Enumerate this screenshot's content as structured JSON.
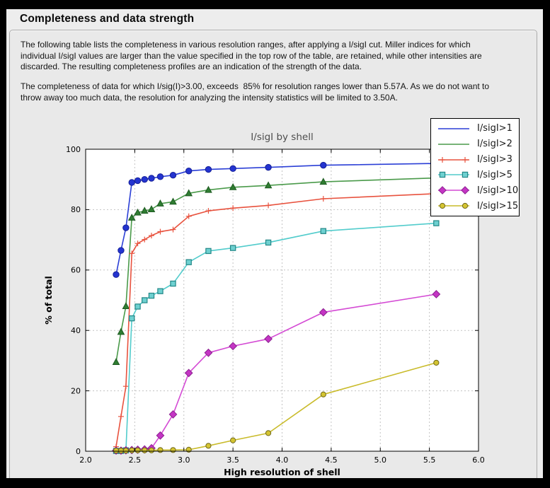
{
  "header": {
    "title": "Completeness and data strength"
  },
  "paragraphs": {
    "p1": "The following table lists the completeness in various resolution ranges, after applying a I/sigI cut. Miller indices for which\nindividual I/sigI values are larger than the value specified in the top row of the table, are retained, while other intensities are\ndiscarded. The resulting completeness profiles are an indication of the strength of the data.",
    "p2": "The completeness of data for which I/sig(I)>3.00, exceeds  85% for resolution ranges lower than 5.57A. As we do not want to\nthrow away too much data, the resolution for analyzing the intensity statistics will be limited to 3.50A."
  },
  "chart_data": {
    "type": "line",
    "title": "I/sigI by shell",
    "xlabel": "High resolution of shell",
    "ylabel": "% of total",
    "xlim": [
      2.0,
      6.0
    ],
    "ylim": [
      0,
      100
    ],
    "xticks": [
      2.0,
      2.5,
      3.0,
      3.5,
      4.0,
      4.5,
      5.0,
      5.5,
      6.0
    ],
    "xtick_labels": [
      "2.0",
      "2.5",
      "3.0",
      "3.5",
      "4.0",
      "4.5",
      "5.0",
      "5.5",
      "6.0"
    ],
    "yticks": [
      0,
      20,
      40,
      60,
      80,
      100
    ],
    "ytick_labels": [
      "0",
      "20",
      "40",
      "60",
      "80",
      "100"
    ],
    "grid": true,
    "legend_position": "top-right",
    "title_color": "#4d4d4d",
    "grid_color": "#c3c3c3",
    "x": [
      2.31,
      2.36,
      2.41,
      2.47,
      2.53,
      2.6,
      2.67,
      2.76,
      2.89,
      3.05,
      3.25,
      3.5,
      3.86,
      4.42,
      5.57
    ],
    "series": [
      {
        "name": "I/sigI>1",
        "marker": "circle",
        "line": "#2b3fd6",
        "fill": "#2434d0",
        "edge": "#141f96",
        "values": [
          58.5,
          66.5,
          74.0,
          89.0,
          89.6,
          90.0,
          90.4,
          90.9,
          91.4,
          92.8,
          93.3,
          93.6,
          94.0,
          94.7,
          95.3
        ]
      },
      {
        "name": "I/sigI>2",
        "marker": "triangle",
        "line": "#4a9a4a",
        "fill": "#2f7d32",
        "edge": "#1d5a20",
        "values": [
          29.5,
          39.5,
          48.0,
          77.3,
          79.0,
          79.6,
          80.1,
          82.0,
          82.6,
          85.4,
          86.5,
          87.4,
          88.0,
          89.2,
          90.5
        ]
      },
      {
        "name": "I/sigI>3",
        "marker": "plus",
        "line": "#e8523e",
        "fill": "#e8523e",
        "edge": "#e8523e",
        "values": [
          1.5,
          11.5,
          21.5,
          65.5,
          68.8,
          70.1,
          71.4,
          72.7,
          73.4,
          77.8,
          79.6,
          80.5,
          81.4,
          83.6,
          85.3
        ]
      },
      {
        "name": "I/sigI>5",
        "marker": "square",
        "line": "#52cccc",
        "fill": "#6ed0d0",
        "edge": "#238787",
        "values": [
          0.1,
          0.1,
          0.3,
          44.0,
          47.9,
          50.0,
          51.5,
          53.0,
          55.5,
          62.6,
          66.3,
          67.3,
          69.1,
          72.9,
          75.5
        ]
      },
      {
        "name": "I/sigI>10",
        "marker": "diamond",
        "line": "#d44ad4",
        "fill": "#c435c4",
        "edge": "#8c2190",
        "values": [
          0.2,
          0.2,
          0.3,
          0.4,
          0.5,
          0.6,
          1.0,
          5.2,
          12.2,
          25.9,
          32.6,
          34.8,
          37.2,
          46.0,
          52.0
        ]
      },
      {
        "name": "I/sigI>15",
        "marker": "circle-small",
        "line": "#c9bb2a",
        "fill": "#d4c431",
        "edge": "#6f681c",
        "values": [
          0.2,
          0.2,
          0.2,
          0.3,
          0.3,
          0.3,
          0.3,
          0.4,
          0.4,
          0.5,
          1.8,
          3.6,
          6.0,
          18.8,
          29.3
        ]
      }
    ]
  }
}
